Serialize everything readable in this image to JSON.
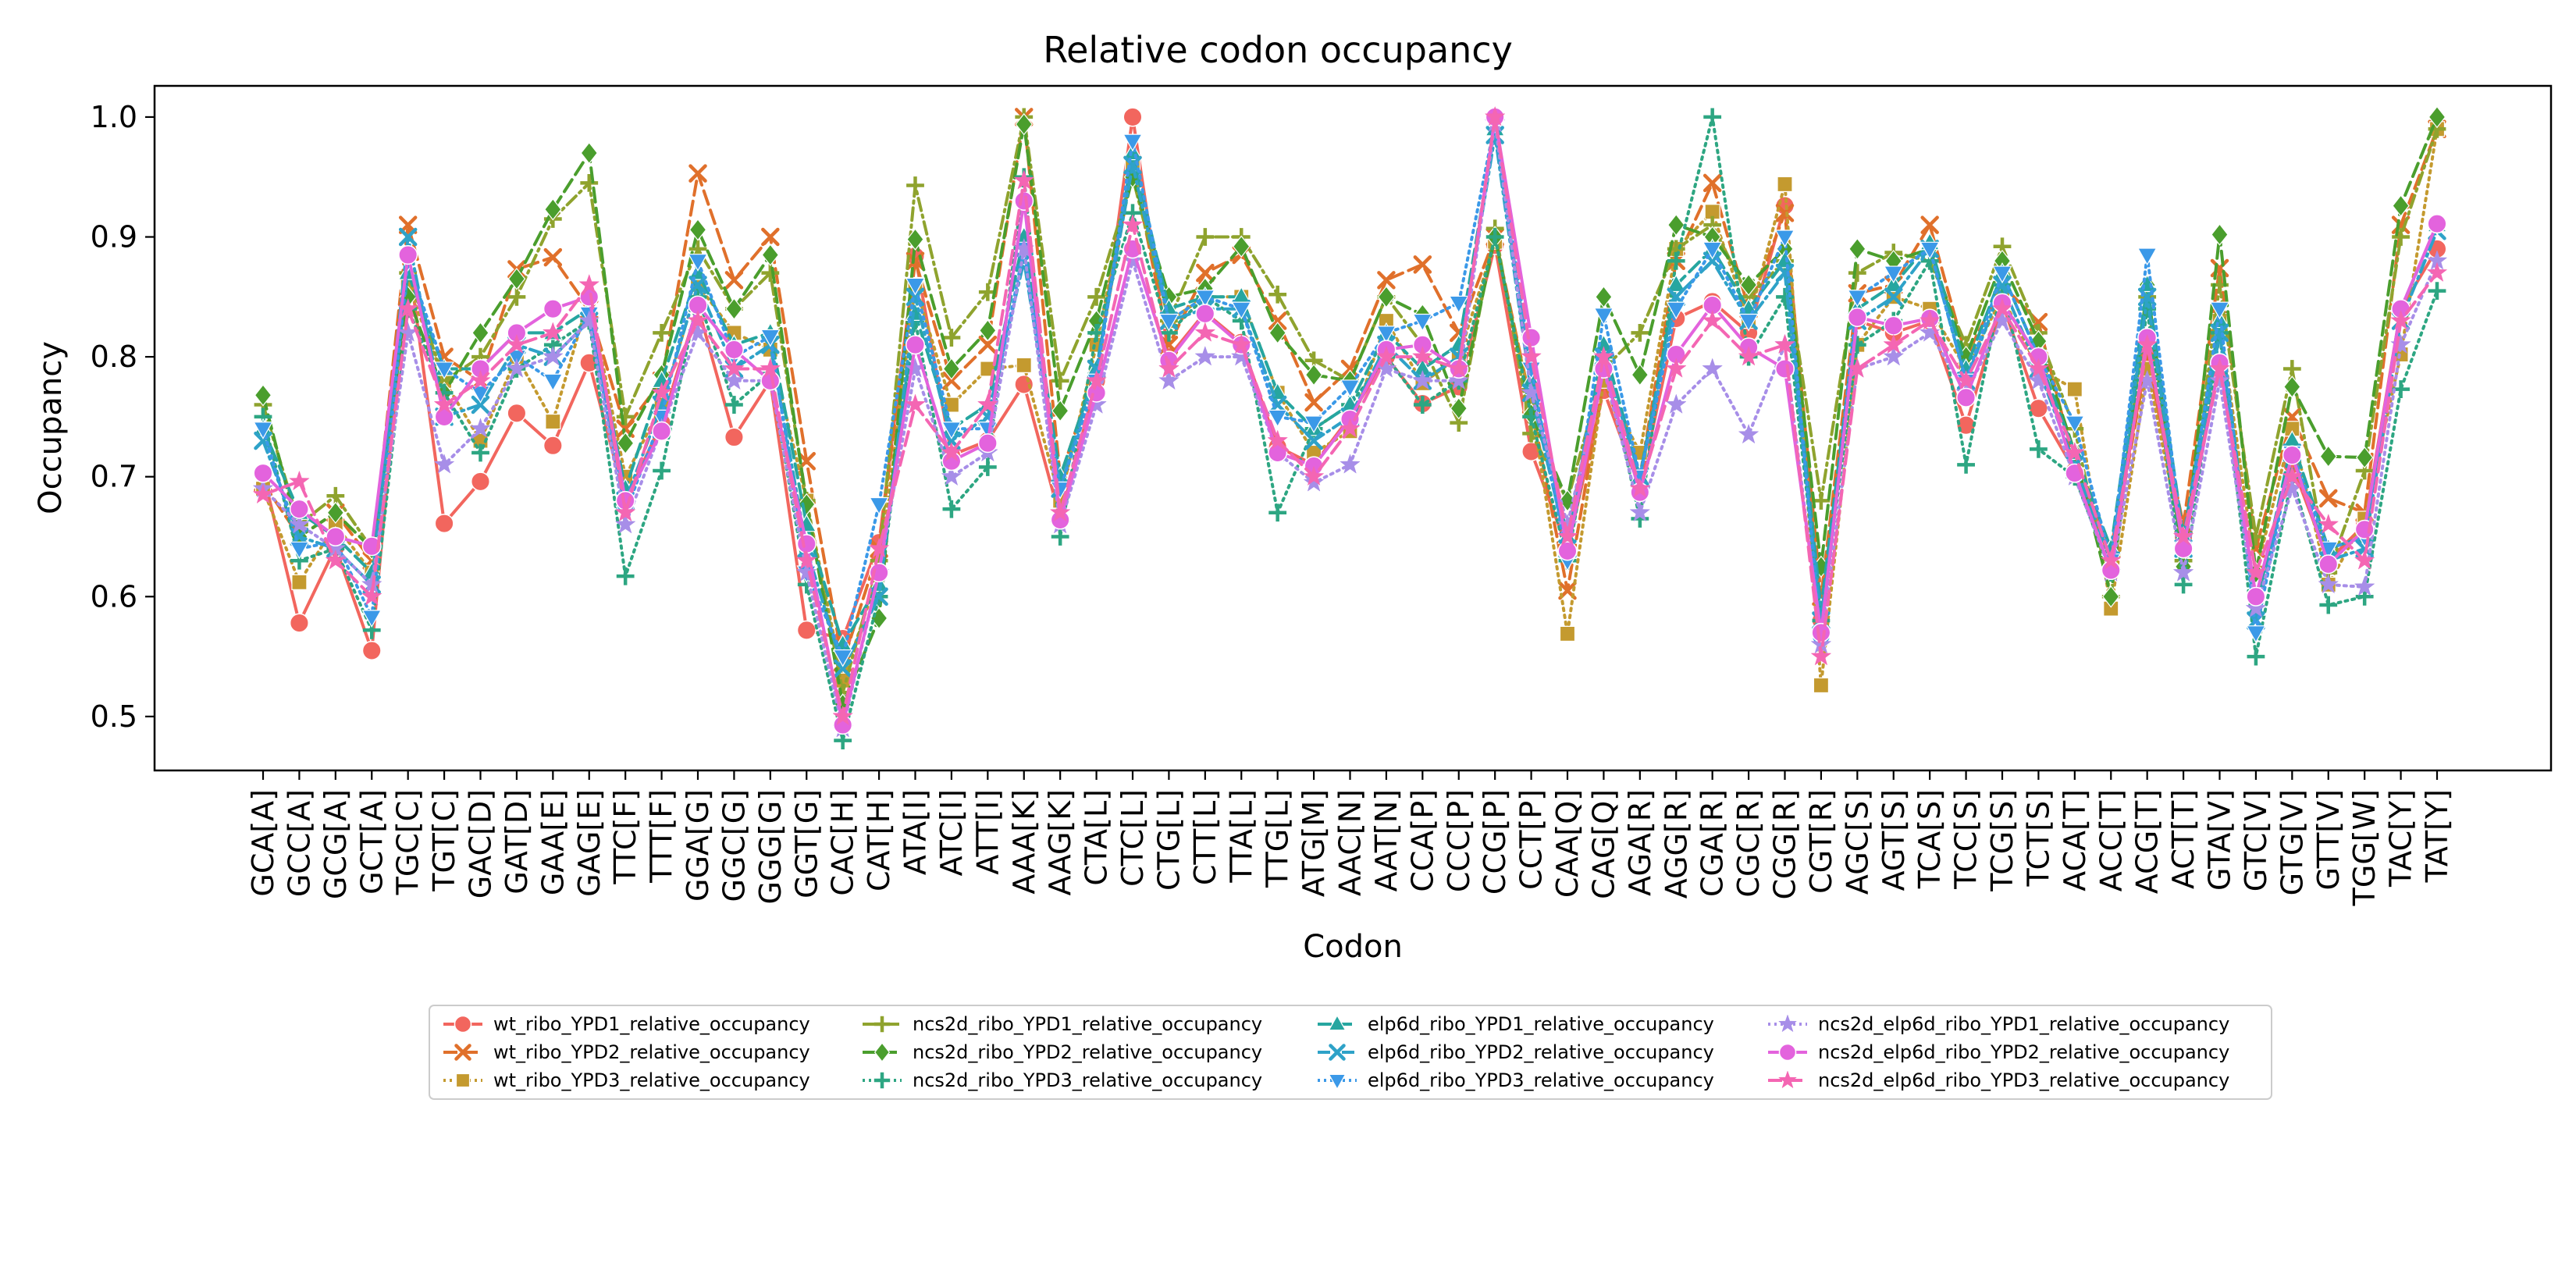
{
  "chart_data": {
    "type": "line",
    "title": "Relative codon occupancy",
    "xlabel": "Codon",
    "ylabel": "Occupancy",
    "ylim": [
      0.455,
      1.026
    ],
    "yticks": [
      "0.5",
      "0.6",
      "0.7",
      "0.8",
      "0.9",
      "1.0"
    ],
    "grid": false,
    "legend_position": "bottom-center",
    "legend_columns": 4,
    "categories": [
      "GCA[A]",
      "GCC[A]",
      "GCG[A]",
      "GCT[A]",
      "TGC[C]",
      "TGT[C]",
      "GAC[D]",
      "GAT[D]",
      "GAA[E]",
      "GAG[E]",
      "TTC[F]",
      "TTT[F]",
      "GGA[G]",
      "GGC[G]",
      "GGG[G]",
      "GGT[G]",
      "CAC[H]",
      "CAT[H]",
      "ATA[I]",
      "ATC[I]",
      "ATT[I]",
      "AAA[K]",
      "AAG[K]",
      "CTA[L]",
      "CTC[L]",
      "CTG[L]",
      "CTT[L]",
      "TTA[L]",
      "TTG[L]",
      "ATG[M]",
      "AAC[N]",
      "AAT[N]",
      "CCA[P]",
      "CCC[P]",
      "CCG[P]",
      "CCT[P]",
      "CAA[Q]",
      "CAG[Q]",
      "AGA[R]",
      "AGG[R]",
      "CGA[R]",
      "CGC[R]",
      "CGG[R]",
      "CGT[R]",
      "AGC[S]",
      "AGT[S]",
      "TCA[S]",
      "TCC[S]",
      "TCG[S]",
      "TCT[S]",
      "ACA[T]",
      "ACC[T]",
      "ACG[T]",
      "ACT[T]",
      "GTA[V]",
      "GTC[V]",
      "GTG[V]",
      "GTT[V]",
      "TGG[W]",
      "TAC[Y]",
      "TAT[Y]"
    ],
    "series": [
      {
        "name": "wt_ribo_YPD1_relative_occupancy",
        "color": "#f2665e",
        "dash": "solid",
        "marker": "circle",
        "values": [
          0.703,
          0.578,
          0.641,
          0.555,
          0.885,
          0.661,
          0.696,
          0.753,
          0.726,
          0.795,
          0.68,
          0.745,
          0.842,
          0.733,
          0.78,
          0.572,
          0.565,
          0.645,
          0.884,
          0.718,
          0.73,
          0.777,
          0.665,
          0.78,
          1.0,
          0.8,
          0.837,
          0.812,
          0.725,
          0.71,
          0.75,
          0.8,
          0.761,
          0.775,
          0.893,
          0.721,
          0.64,
          0.772,
          0.69,
          0.832,
          0.846,
          0.82,
          0.926,
          0.58,
          0.83,
          0.82,
          0.83,
          0.743,
          0.845,
          0.757,
          0.705,
          0.64,
          0.8,
          0.65,
          0.795,
          0.6,
          0.71,
          0.63,
          0.66,
          0.84,
          0.89
        ]
      },
      {
        "name": "wt_ribo_YPD2_relative_occupancy",
        "color": "#e0702b",
        "dash": "dashed",
        "marker": "x",
        "values": [
          0.695,
          0.65,
          0.67,
          0.63,
          0.91,
          0.8,
          0.78,
          0.873,
          0.883,
          0.84,
          0.74,
          0.78,
          0.953,
          0.864,
          0.9,
          0.713,
          0.545,
          0.64,
          0.88,
          0.78,
          0.81,
          1.0,
          0.7,
          0.79,
          0.96,
          0.81,
          0.87,
          0.885,
          0.83,
          0.762,
          0.79,
          0.864,
          0.877,
          0.82,
          0.9,
          0.76,
          0.605,
          0.78,
          0.7,
          0.88,
          0.945,
          0.84,
          0.92,
          0.6,
          0.853,
          0.86,
          0.91,
          0.8,
          0.86,
          0.829,
          0.71,
          0.63,
          0.8,
          0.66,
          0.874,
          0.64,
          0.75,
          0.682,
          0.67,
          0.91,
          0.99
        ]
      },
      {
        "name": "wt_ribo_YPD3_relative_occupancy",
        "color": "#c49a2f",
        "dash": "dotted",
        "marker": "square",
        "values": [
          0.69,
          0.612,
          0.66,
          0.62,
          0.86,
          0.78,
          0.73,
          0.8,
          0.746,
          0.85,
          0.7,
          0.76,
          0.86,
          0.82,
          0.806,
          0.68,
          0.53,
          0.62,
          0.86,
          0.76,
          0.79,
          0.793,
          0.68,
          0.81,
          0.96,
          0.83,
          0.85,
          0.85,
          0.77,
          0.72,
          0.738,
          0.83,
          0.778,
          0.8,
          0.896,
          0.76,
          0.569,
          0.78,
          0.72,
          0.89,
          0.921,
          0.83,
          0.944,
          0.526,
          0.81,
          0.85,
          0.84,
          0.79,
          0.85,
          0.79,
          0.773,
          0.59,
          0.79,
          0.64,
          0.83,
          0.62,
          0.74,
          0.61,
          0.665,
          0.802,
          0.99
        ]
      },
      {
        "name": "ncs2d_ribo_YPD1_relative_occupancy",
        "color": "#8fa32e",
        "dash": "dashdot",
        "marker": "plus",
        "values": [
          0.76,
          0.66,
          0.684,
          0.64,
          0.87,
          0.78,
          0.8,
          0.85,
          0.915,
          0.945,
          0.75,
          0.82,
          0.89,
          0.84,
          0.87,
          0.68,
          0.52,
          0.63,
          0.943,
          0.816,
          0.854,
          1.0,
          0.78,
          0.85,
          0.95,
          0.83,
          0.9,
          0.9,
          0.852,
          0.797,
          0.78,
          0.85,
          0.81,
          0.745,
          0.907,
          0.736,
          0.68,
          0.79,
          0.82,
          0.89,
          0.91,
          0.85,
          0.88,
          0.68,
          0.87,
          0.887,
          0.88,
          0.81,
          0.892,
          0.82,
          0.74,
          0.6,
          0.85,
          0.63,
          0.86,
          0.65,
          0.79,
          0.62,
          0.705,
          0.9,
          0.99
        ]
      },
      {
        "name": "ncs2d_ribo_YPD2_relative_occupancy",
        "color": "#4a9e2d",
        "dash": "dashed",
        "marker": "diamond",
        "values": [
          0.768,
          0.65,
          0.67,
          0.64,
          0.85,
          0.77,
          0.82,
          0.865,
          0.923,
          0.97,
          0.728,
          0.785,
          0.906,
          0.84,
          0.885,
          0.677,
          0.51,
          0.582,
          0.898,
          0.79,
          0.822,
          0.994,
          0.755,
          0.83,
          0.95,
          0.85,
          0.857,
          0.892,
          0.82,
          0.785,
          0.78,
          0.85,
          0.835,
          0.757,
          0.9,
          0.752,
          0.68,
          0.85,
          0.785,
          0.91,
          0.9,
          0.86,
          0.89,
          0.625,
          0.89,
          0.88,
          0.89,
          0.8,
          0.88,
          0.813,
          0.72,
          0.6,
          0.86,
          0.625,
          0.902,
          0.62,
          0.775,
          0.717,
          0.716,
          0.926,
          1.0
        ]
      },
      {
        "name": "ncs2d_ribo_YPD3_relative_occupancy",
        "color": "#2da682",
        "dash": "dotted",
        "marker": "plus",
        "values": [
          0.75,
          0.63,
          0.64,
          0.572,
          0.84,
          0.77,
          0.72,
          0.79,
          0.81,
          0.83,
          0.617,
          0.705,
          0.85,
          0.76,
          0.786,
          0.61,
          0.48,
          0.6,
          0.83,
          0.673,
          0.708,
          0.95,
          0.65,
          0.82,
          0.92,
          0.82,
          0.85,
          0.83,
          0.67,
          0.74,
          0.76,
          0.8,
          0.76,
          0.78,
          0.9,
          0.75,
          0.63,
          0.8,
          0.665,
          0.88,
          1.0,
          0.8,
          0.85,
          0.58,
          0.81,
          0.83,
          0.88,
          0.71,
          0.86,
          0.723,
          0.7,
          0.62,
          0.84,
          0.61,
          0.82,
          0.55,
          0.7,
          0.593,
          0.6,
          0.773,
          0.855
        ]
      },
      {
        "name": "elp6d_ribo_YPD1_relative_occupancy",
        "color": "#26a6a0",
        "dash": "dashed",
        "marker": "triangle-up",
        "values": [
          0.74,
          0.67,
          0.65,
          0.62,
          0.87,
          0.79,
          0.79,
          0.82,
          0.82,
          0.84,
          0.69,
          0.78,
          0.87,
          0.81,
          0.82,
          0.66,
          0.56,
          0.61,
          0.836,
          0.74,
          0.76,
          0.9,
          0.7,
          0.79,
          0.97,
          0.84,
          0.85,
          0.85,
          0.77,
          0.74,
          0.76,
          0.82,
          0.79,
          0.81,
          0.99,
          0.78,
          0.65,
          0.81,
          0.7,
          0.86,
          0.89,
          0.84,
          0.88,
          0.59,
          0.84,
          0.86,
          0.895,
          0.79,
          0.87,
          0.8,
          0.72,
          0.64,
          0.86,
          0.65,
          0.83,
          0.59,
          0.73,
          0.64,
          0.65,
          0.84,
          0.91
        ]
      },
      {
        "name": "elp6d_ribo_YPD2_relative_occupancy",
        "color": "#2ea2c8",
        "dash": "dashdot",
        "marker": "x",
        "values": [
          0.73,
          0.65,
          0.64,
          0.61,
          0.9,
          0.75,
          0.76,
          0.81,
          0.8,
          0.83,
          0.68,
          0.76,
          0.86,
          0.79,
          0.81,
          0.64,
          0.54,
          0.6,
          0.85,
          0.73,
          0.75,
          0.88,
          0.69,
          0.79,
          0.96,
          0.83,
          0.84,
          0.84,
          0.76,
          0.73,
          0.75,
          0.81,
          0.78,
          0.8,
          0.985,
          0.77,
          0.64,
          0.8,
          0.7,
          0.85,
          0.88,
          0.83,
          0.87,
          0.58,
          0.83,
          0.85,
          0.89,
          0.78,
          0.86,
          0.79,
          0.71,
          0.63,
          0.85,
          0.64,
          0.82,
          0.58,
          0.72,
          0.63,
          0.64,
          0.83,
          0.905
        ]
      },
      {
        "name": "elp6d_ribo_YPD3_relative_occupancy",
        "color": "#3b99e8",
        "dash": "dotted",
        "marker": "triangle-down",
        "values": [
          0.74,
          0.64,
          0.646,
          0.583,
          0.88,
          0.79,
          0.77,
          0.8,
          0.78,
          0.836,
          0.67,
          0.75,
          0.88,
          0.8,
          0.817,
          0.62,
          0.55,
          0.677,
          0.86,
          0.74,
          0.74,
          0.89,
          0.69,
          0.78,
          0.98,
          0.83,
          0.85,
          0.84,
          0.75,
          0.745,
          0.775,
          0.82,
          0.83,
          0.845,
          0.995,
          0.79,
          0.63,
          0.835,
          0.7,
          0.84,
          0.89,
          0.83,
          0.9,
          0.56,
          0.85,
          0.87,
          0.89,
          0.78,
          0.87,
          0.8,
          0.745,
          0.63,
          0.885,
          0.64,
          0.84,
          0.57,
          0.72,
          0.64,
          0.65,
          0.84,
          0.91
        ]
      },
      {
        "name": "ncs2d_elp6d_ribo_YPD1_relative_occupancy",
        "color": "#a78ee8",
        "dash": "dotted",
        "marker": "star",
        "values": [
          0.69,
          0.66,
          0.64,
          0.61,
          0.82,
          0.71,
          0.74,
          0.79,
          0.8,
          0.83,
          0.66,
          0.74,
          0.82,
          0.78,
          0.78,
          0.62,
          0.49,
          0.62,
          0.79,
          0.7,
          0.72,
          0.89,
          0.66,
          0.76,
          0.88,
          0.78,
          0.8,
          0.8,
          0.72,
          0.695,
          0.71,
          0.79,
          0.78,
          0.78,
          0.995,
          0.77,
          0.66,
          0.79,
          0.67,
          0.76,
          0.79,
          0.735,
          0.81,
          0.56,
          0.79,
          0.8,
          0.82,
          0.77,
          0.83,
          0.78,
          0.7,
          0.62,
          0.78,
          0.62,
          0.78,
          0.59,
          0.69,
          0.61,
          0.608,
          0.81,
          0.88
        ]
      },
      {
        "name": "ncs2d_elp6d_ribo_YPD2_relative_occupancy",
        "color": "#e363dd",
        "dash": "solid",
        "marker": "circle",
        "values": [
          0.703,
          0.673,
          0.65,
          0.642,
          0.885,
          0.75,
          0.79,
          0.82,
          0.84,
          0.85,
          0.68,
          0.738,
          0.843,
          0.806,
          0.78,
          0.644,
          0.493,
          0.62,
          0.81,
          0.713,
          0.728,
          0.93,
          0.664,
          0.77,
          0.89,
          0.797,
          0.836,
          0.81,
          0.72,
          0.709,
          0.748,
          0.806,
          0.81,
          0.79,
          1.0,
          0.816,
          0.638,
          0.79,
          0.687,
          0.802,
          0.843,
          0.808,
          0.79,
          0.57,
          0.833,
          0.826,
          0.832,
          0.766,
          0.845,
          0.8,
          0.703,
          0.622,
          0.816,
          0.64,
          0.795,
          0.6,
          0.718,
          0.627,
          0.656,
          0.84,
          0.911
        ]
      },
      {
        "name": "ncs2d_elp6d_ribo_YPD3_relative_occupancy",
        "color": "#f466b3",
        "dash": "dashed",
        "marker": "star",
        "values": [
          0.685,
          0.696,
          0.63,
          0.6,
          0.84,
          0.76,
          0.78,
          0.81,
          0.82,
          0.86,
          0.67,
          0.77,
          0.83,
          0.79,
          0.79,
          0.63,
          0.5,
          0.64,
          0.76,
          0.72,
          0.76,
          0.947,
          0.67,
          0.78,
          0.91,
          0.79,
          0.82,
          0.81,
          0.73,
          0.7,
          0.74,
          0.8,
          0.8,
          0.79,
          1.0,
          0.8,
          0.65,
          0.8,
          0.69,
          0.79,
          0.83,
          0.8,
          0.81,
          0.55,
          0.79,
          0.81,
          0.83,
          0.78,
          0.84,
          0.79,
          0.72,
          0.63,
          0.81,
          0.65,
          0.79,
          0.62,
          0.7,
          0.66,
          0.63,
          0.83,
          0.87
        ]
      }
    ]
  }
}
